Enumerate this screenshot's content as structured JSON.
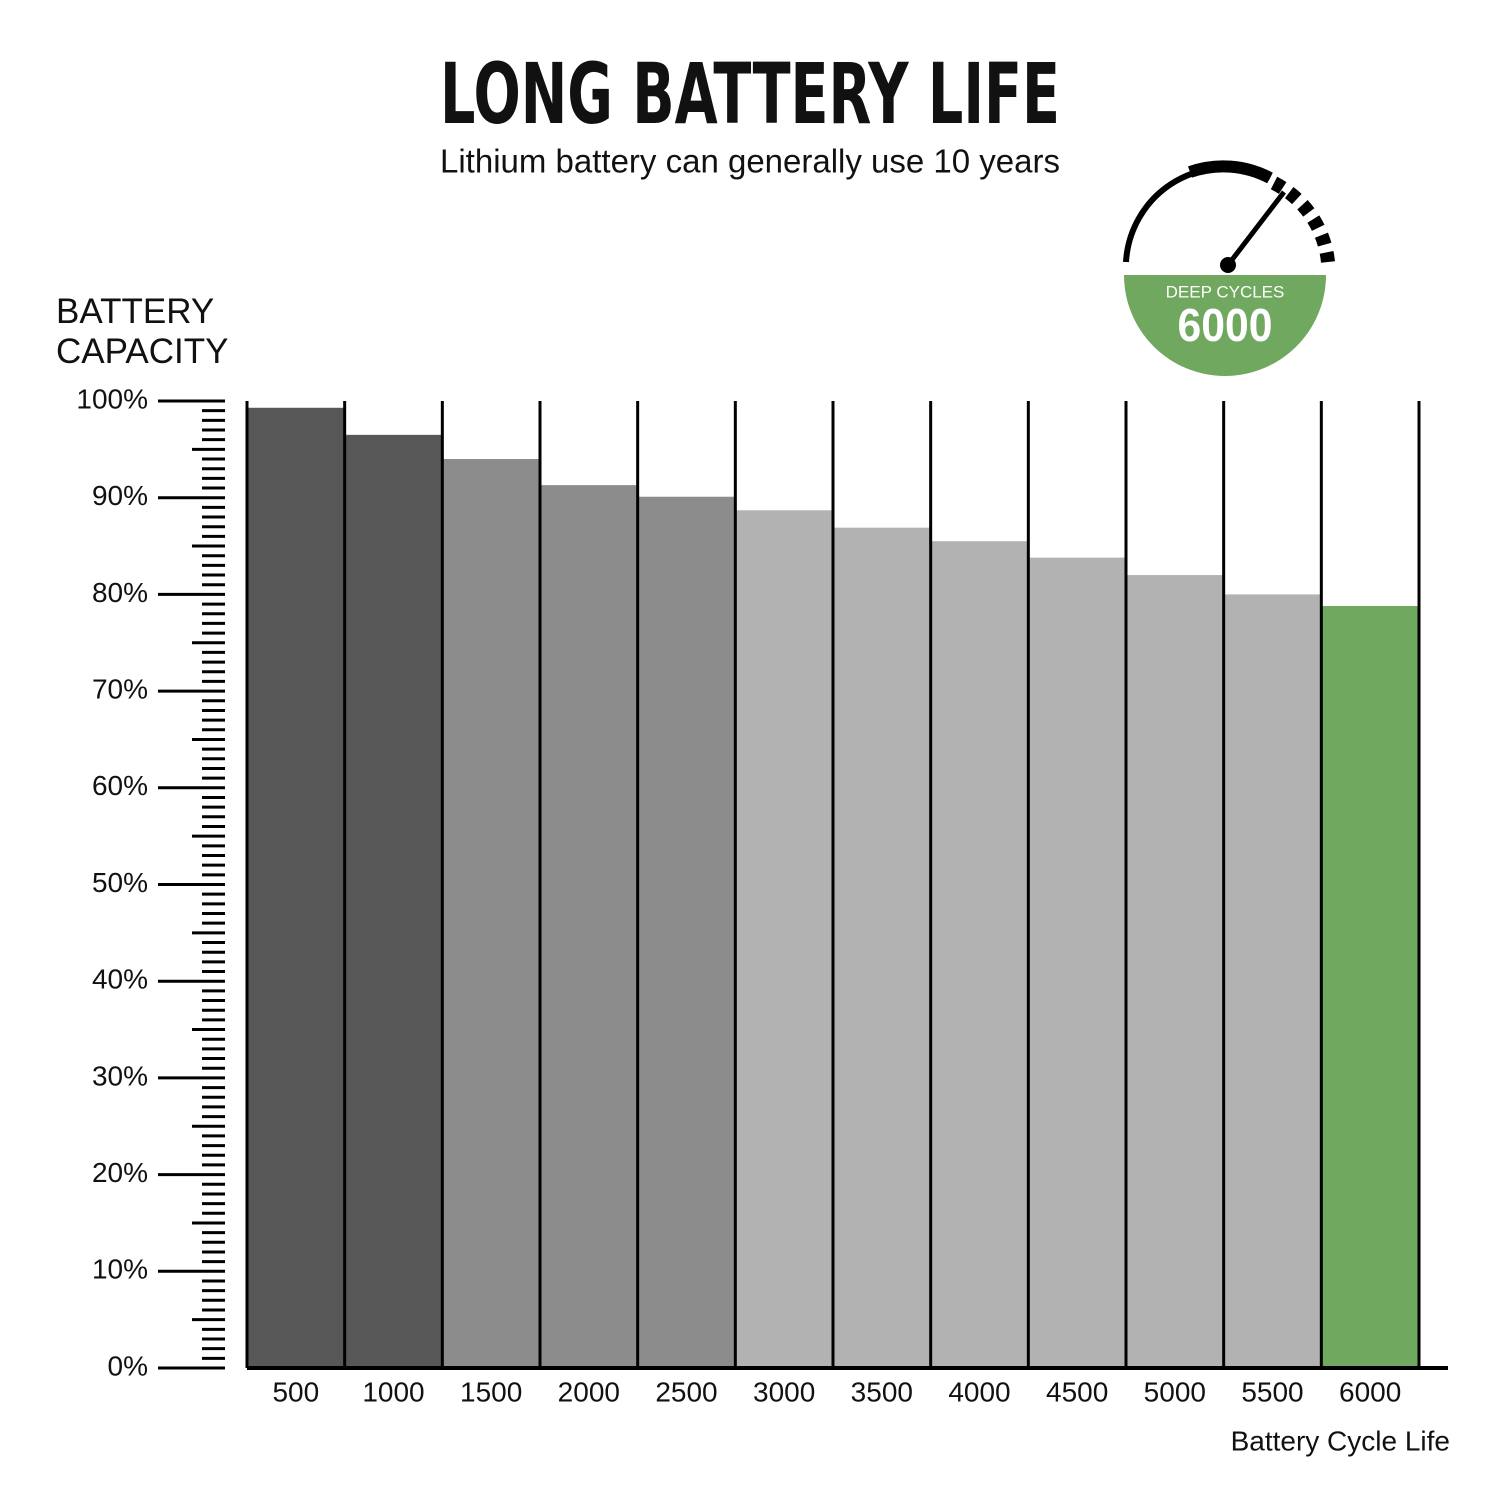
{
  "chart_data": {
    "type": "bar",
    "title": "LONG BATTERY LIFE",
    "subtitle": "Lithium battery can generally use 10 years",
    "y_label": "BATTERY CAPACITY",
    "x_label": "Battery Cycle Life",
    "badge_label": "DEEP CYCLES",
    "badge_value": "6000",
    "categories": [
      "500",
      "1000",
      "1500",
      "2000",
      "2500",
      "3000",
      "3500",
      "4000",
      "4500",
      "5000",
      "5500",
      "6000"
    ],
    "values": [
      99.3,
      96.5,
      94.0,
      91.3,
      90.1,
      88.7,
      86.9,
      85.5,
      83.8,
      82.0,
      80.0,
      78.8
    ],
    "colors": [
      "#575757",
      "#575757",
      "#8c8c8c",
      "#8c8c8c",
      "#8c8c8c",
      "#b2b2b2",
      "#b2b2b2",
      "#b2b2b2",
      "#b2b2b2",
      "#b2b2b2",
      "#b2b2b2",
      "#6fa85e"
    ],
    "ylim": [
      0,
      100
    ],
    "yticks": [
      {
        "value": 0,
        "label": "0%"
      },
      {
        "value": 10,
        "label": "10%"
      },
      {
        "value": 20,
        "label": "20%"
      },
      {
        "value": 30,
        "label": "30%"
      },
      {
        "value": 40,
        "label": "40%"
      },
      {
        "value": 50,
        "label": "50%"
      },
      {
        "value": 60,
        "label": "60%"
      },
      {
        "value": 70,
        "label": "70%"
      },
      {
        "value": 80,
        "label": "80%"
      },
      {
        "value": 90,
        "label": "90%"
      },
      {
        "value": 100,
        "label": "100%"
      }
    ]
  }
}
